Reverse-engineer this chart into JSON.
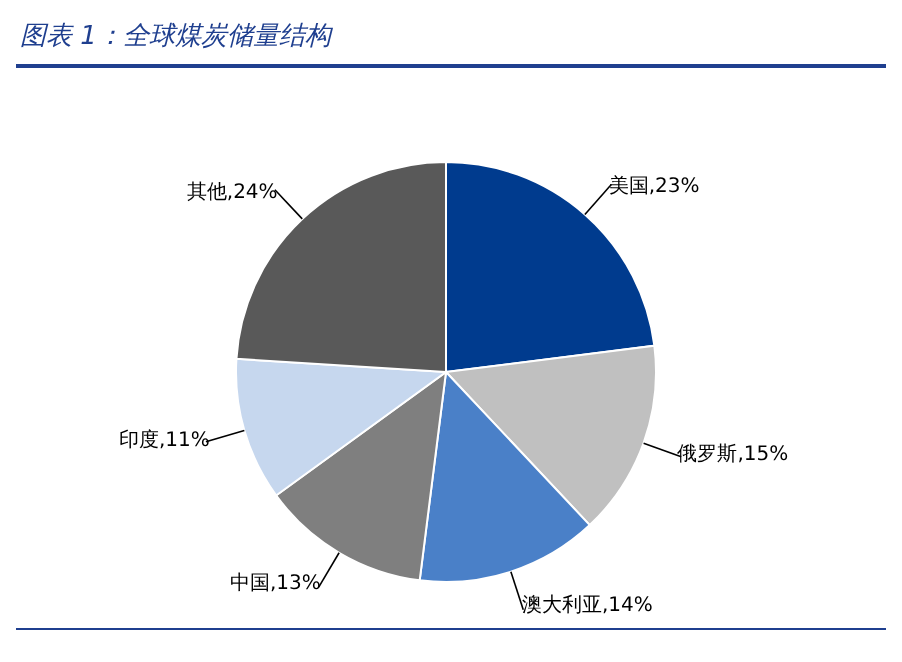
{
  "chart_data": {
    "type": "pie",
    "title": "图表 1：全球煤炭储量结构",
    "categories": [
      "美国",
      "俄罗斯",
      "澳大利亚",
      "中国",
      "印度",
      "其他"
    ],
    "values": [
      23,
      15,
      14,
      13,
      11,
      24
    ],
    "value_labels": [
      "23%",
      "15%",
      "14%",
      "13%",
      "11%",
      "24%"
    ],
    "colors": [
      "#003b8e",
      "#c0c0c0",
      "#4a80c8",
      "#7f7f7f",
      "#c6d7ee",
      "#595959"
    ],
    "legend": false
  }
}
